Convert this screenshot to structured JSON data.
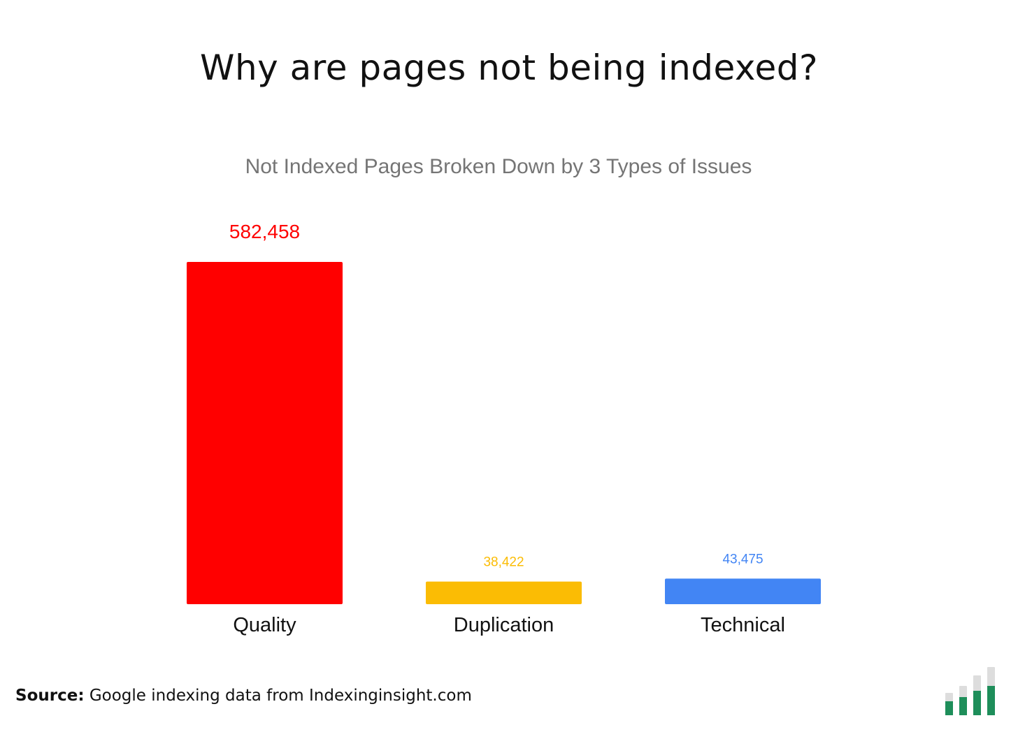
{
  "header": {
    "title": "Why are pages not being indexed?"
  },
  "chart_data": {
    "type": "bar",
    "title": "Not Indexed Pages Broken Down by 3 Types of Issues",
    "categories": [
      "Quality",
      "Duplication",
      "Technical"
    ],
    "values": [
      582458,
      38422,
      43475
    ],
    "value_labels": [
      "582,458",
      "38,422",
      "43,475"
    ],
    "colors": [
      "#ff0000",
      "#fbbc04",
      "#4285f4"
    ],
    "xlabel": "",
    "ylabel": "",
    "ylim": [
      0,
      582458
    ],
    "grid": false,
    "legend": "none"
  },
  "footer": {
    "source_label": "Source:",
    "source_text": "Google indexing data from Indexinginsight.com"
  },
  "logo": {
    "icon": "bar-chart-logo-icon",
    "colors": {
      "fill": "#1e8e5a",
      "track": "#dddddd"
    }
  }
}
